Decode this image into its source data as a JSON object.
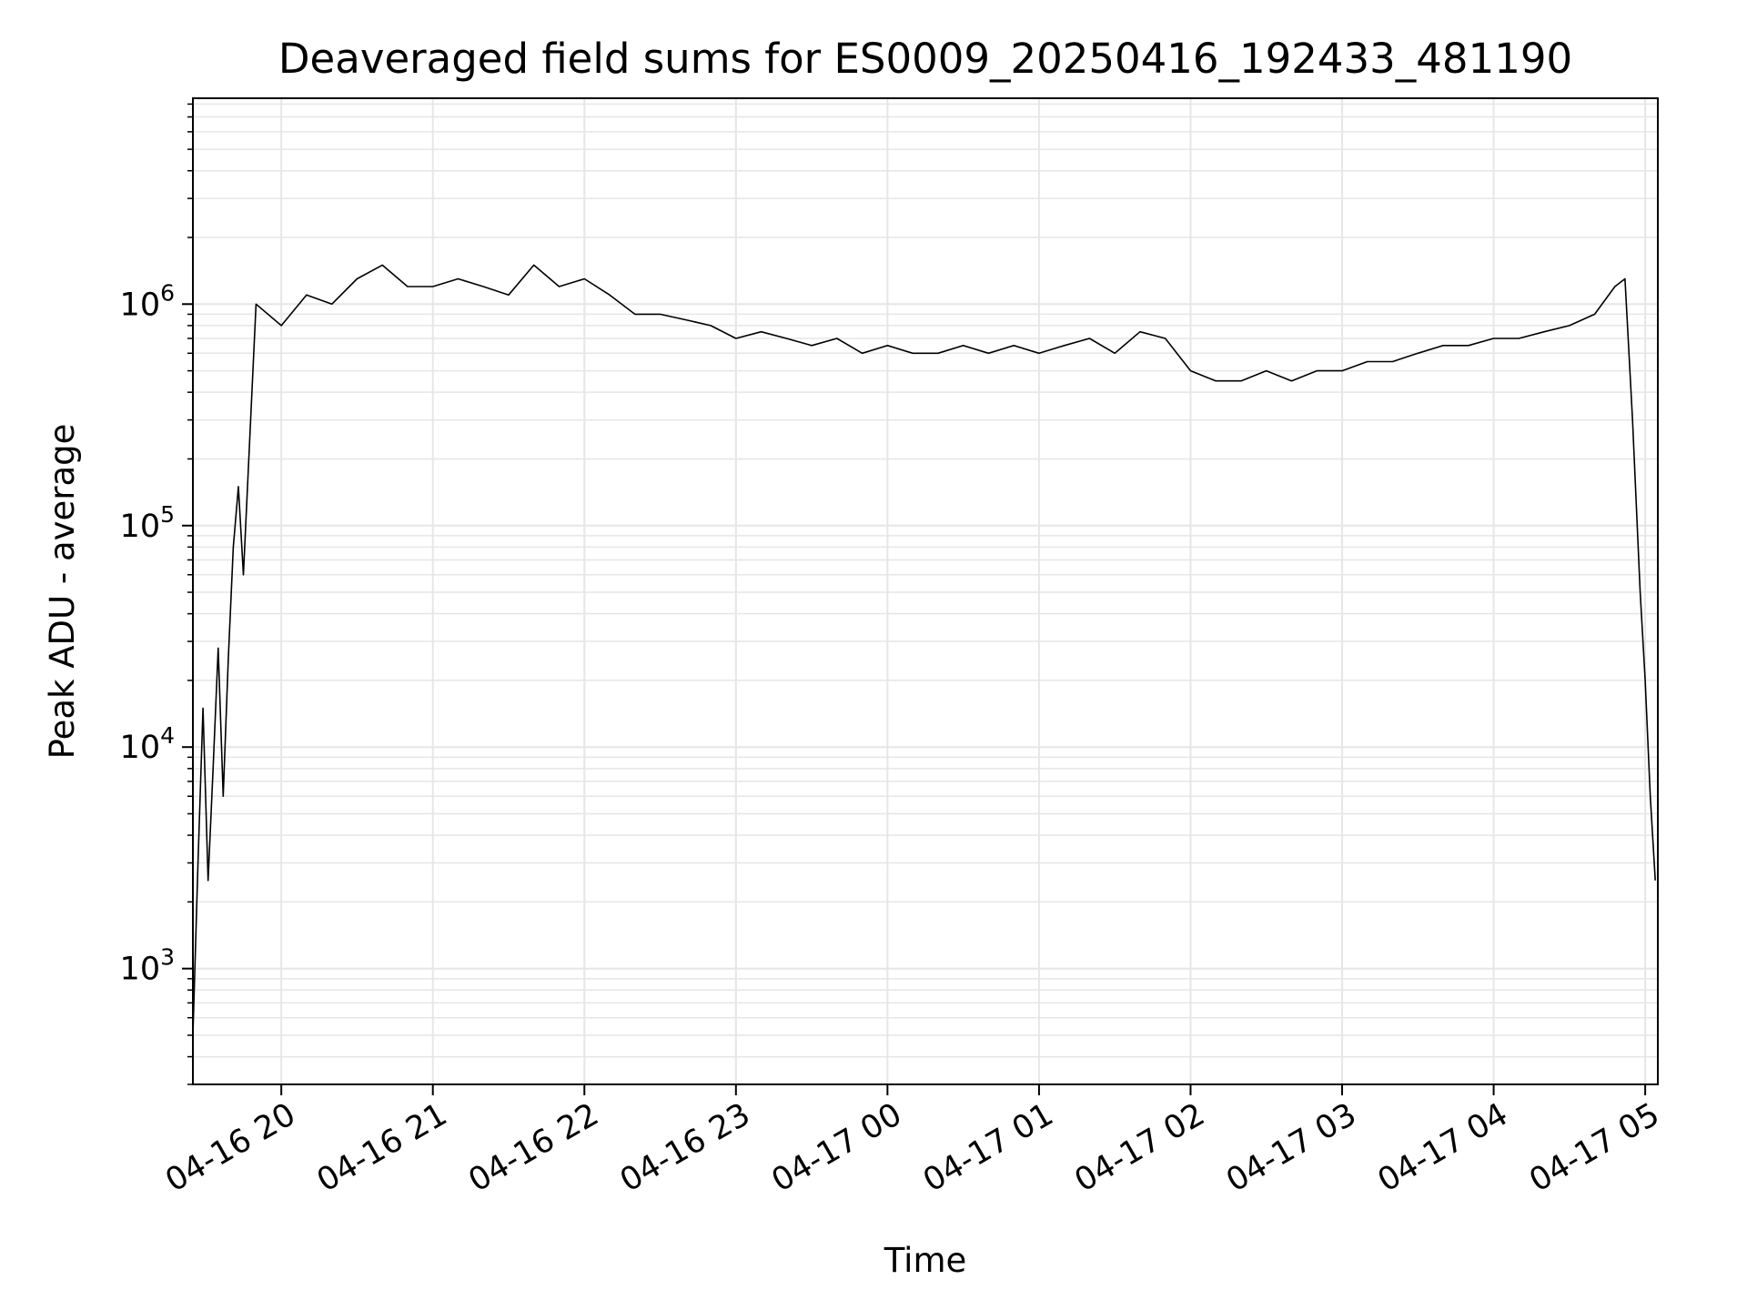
{
  "chart_data": {
    "type": "line",
    "title": "Deaveraged field sums for ES0009_20250416_192433_481190",
    "xlabel": "Time",
    "ylabel": "Peak ADU - average",
    "yscale": "log",
    "ylim": [
      300,
      8500000
    ],
    "xlim": [
      "2025-04-16 19:25",
      "2025-04-17 05:05"
    ],
    "grid": true,
    "line_color": "#000000",
    "x_ticks": [
      "2025-04-16 20:00",
      "2025-04-16 21:00",
      "2025-04-16 22:00",
      "2025-04-16 23:00",
      "2025-04-17 00:00",
      "2025-04-17 01:00",
      "2025-04-17 02:00",
      "2025-04-17 03:00",
      "2025-04-17 04:00",
      "2025-04-17 05:00"
    ],
    "x_tick_labels": [
      "04-16 20",
      "04-16 21",
      "04-16 22",
      "04-16 23",
      "04-17 00",
      "04-17 01",
      "04-17 02",
      "04-17 03",
      "04-17 04",
      "04-17 05"
    ],
    "y_ticks": [
      {
        "value": 1000,
        "base": "10",
        "exp": "3"
      },
      {
        "value": 10000,
        "base": "10",
        "exp": "4"
      },
      {
        "value": 100000,
        "base": "10",
        "exp": "5"
      },
      {
        "value": 1000000,
        "base": "10",
        "exp": "6"
      }
    ],
    "series": [
      {
        "x": [
          "2025-04-16 19:25",
          "2025-04-16 19:27",
          "2025-04-16 19:29",
          "2025-04-16 19:31",
          "2025-04-16 19:33",
          "2025-04-16 19:35",
          "2025-04-16 19:37",
          "2025-04-16 19:39",
          "2025-04-16 19:41",
          "2025-04-16 19:43",
          "2025-04-16 19:45",
          "2025-04-16 19:50",
          "2025-04-16 20:00",
          "2025-04-16 20:10",
          "2025-04-16 20:20",
          "2025-04-16 20:30",
          "2025-04-16 20:40",
          "2025-04-16 20:50",
          "2025-04-16 21:00",
          "2025-04-16 21:10",
          "2025-04-16 21:20",
          "2025-04-16 21:30",
          "2025-04-16 21:40",
          "2025-04-16 21:50",
          "2025-04-16 22:00",
          "2025-04-16 22:10",
          "2025-04-16 22:20",
          "2025-04-16 22:30",
          "2025-04-16 22:40",
          "2025-04-16 22:50",
          "2025-04-16 23:00",
          "2025-04-16 23:10",
          "2025-04-16 23:20",
          "2025-04-16 23:30",
          "2025-04-16 23:40",
          "2025-04-16 23:50",
          "2025-04-17 00:00",
          "2025-04-17 00:10",
          "2025-04-17 00:20",
          "2025-04-17 00:30",
          "2025-04-17 00:40",
          "2025-04-17 00:50",
          "2025-04-17 01:00",
          "2025-04-17 01:10",
          "2025-04-17 01:20",
          "2025-04-17 01:30",
          "2025-04-17 01:40",
          "2025-04-17 01:50",
          "2025-04-17 02:00",
          "2025-04-17 02:10",
          "2025-04-17 02:20",
          "2025-04-17 02:30",
          "2025-04-17 02:40",
          "2025-04-17 02:50",
          "2025-04-17 03:00",
          "2025-04-17 03:10",
          "2025-04-17 03:20",
          "2025-04-17 03:30",
          "2025-04-17 03:40",
          "2025-04-17 03:50",
          "2025-04-17 04:00",
          "2025-04-17 04:10",
          "2025-04-17 04:20",
          "2025-04-17 04:30",
          "2025-04-17 04:40",
          "2025-04-17 04:48",
          "2025-04-17 04:52",
          "2025-04-17 04:55",
          "2025-04-17 04:58",
          "2025-04-17 05:00",
          "2025-04-17 05:02",
          "2025-04-17 05:04"
        ],
        "y": [
          500,
          3000,
          15000,
          2500,
          8000,
          28000,
          6000,
          25000,
          80000,
          150000,
          60000,
          1000000,
          800000,
          1100000,
          1000000,
          1300000,
          1500000,
          1200000,
          1200000,
          1300000,
          1200000,
          1100000,
          1500000,
          1200000,
          1300000,
          1100000,
          900000,
          900000,
          850000,
          800000,
          700000,
          750000,
          700000,
          650000,
          700000,
          600000,
          650000,
          600000,
          600000,
          650000,
          600000,
          650000,
          600000,
          650000,
          700000,
          600000,
          750000,
          700000,
          500000,
          450000,
          450000,
          500000,
          450000,
          500000,
          500000,
          550000,
          550000,
          600000,
          650000,
          650000,
          700000,
          700000,
          750000,
          800000,
          900000,
          1200000,
          1300000,
          300000,
          50000,
          20000,
          6000,
          2500
        ]
      }
    ]
  }
}
